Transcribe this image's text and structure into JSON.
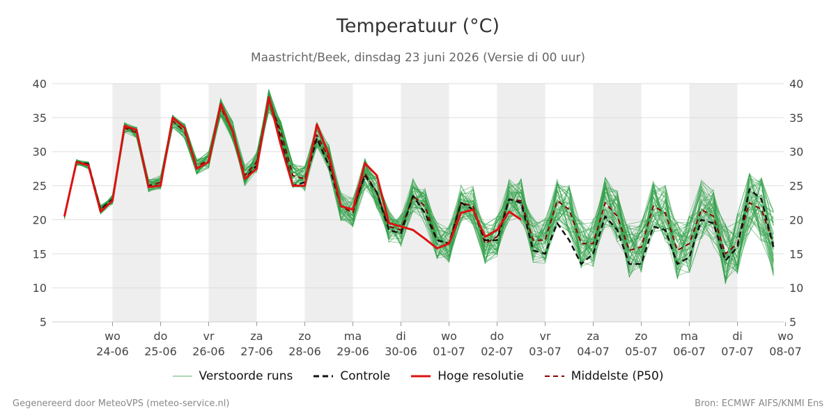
{
  "header": {
    "title": "Temperatuur (°C)",
    "subtitle": "Maastricht/Beek, dinsdag 23 juni 2026 (Versie di 00 uur)"
  },
  "footer": {
    "left": "Gegenereerd door MeteoVPS (meteo-service.nl)",
    "right": "Bron: ECMWF AIFS/KNMI Ens"
  },
  "legend": [
    {
      "label": "Verstoorde runs",
      "key": "ensemble"
    },
    {
      "label": "Controle",
      "key": "control"
    },
    {
      "label": "Hoge resolutie",
      "key": "hres"
    },
    {
      "label": "Middelste (P50)",
      "key": "p50"
    }
  ],
  "colors": {
    "ensemble": "#2e9e46",
    "control": "#111111",
    "hres": "#dd1111",
    "p50": "#8b0000",
    "weekend_band": "#eeeeee",
    "grid": "#dddddd"
  },
  "chart_data": {
    "type": "line",
    "x_unit": "6-hour steps from 23-06 00:00",
    "x_range": [
      0,
      62
    ],
    "ylim": [
      5,
      40
    ],
    "y_ticks": [
      5,
      10,
      15,
      20,
      25,
      30,
      35,
      40
    ],
    "x_ticks": [
      {
        "day": "wo",
        "date": "24-06",
        "x": 4
      },
      {
        "day": "do",
        "date": "25-06",
        "x": 8
      },
      {
        "day": "vr",
        "date": "26-06",
        "x": 12
      },
      {
        "day": "za",
        "date": "27-06",
        "x": 16
      },
      {
        "day": "zo",
        "date": "28-06",
        "x": 20
      },
      {
        "day": "ma",
        "date": "29-06",
        "x": 24
      },
      {
        "day": "di",
        "date": "30-06",
        "x": 28
      },
      {
        "day": "wo",
        "date": "01-07",
        "x": 32
      },
      {
        "day": "do",
        "date": "02-07",
        "x": 36
      },
      {
        "day": "vr",
        "date": "03-07",
        "x": 40
      },
      {
        "day": "za",
        "date": "04-07",
        "x": 44
      },
      {
        "day": "zo",
        "date": "05-07",
        "x": 48
      },
      {
        "day": "ma",
        "date": "06-07",
        "x": 52
      },
      {
        "day": "di",
        "date": "07-07",
        "x": 56
      },
      {
        "day": "wo",
        "date": "08-07",
        "x": 60
      }
    ],
    "shaded_bands": [
      [
        4,
        8
      ],
      [
        12,
        16
      ],
      [
        20,
        24
      ],
      [
        28,
        32
      ],
      [
        36,
        40
      ],
      [
        44,
        48
      ],
      [
        52,
        56
      ]
    ],
    "ensemble_members": 50,
    "series": [
      {
        "name": "Controle",
        "key": "control",
        "values": [
          20.5,
          28.5,
          28.2,
          21.5,
          23,
          33.8,
          33,
          25,
          25,
          35,
          33.5,
          27.5,
          28.5,
          37,
          33,
          26,
          28,
          38,
          32,
          25,
          25.5,
          32,
          28,
          22,
          21.5,
          26.5,
          24,
          18.5,
          18,
          23.5,
          21,
          17,
          16.5,
          22.5,
          21.5,
          17,
          17,
          23,
          22.5,
          15.5,
          15,
          19.5,
          17,
          13.5,
          15,
          20.5,
          18.5,
          13.5,
          13.5,
          19,
          18.5,
          13.5,
          14.5,
          20,
          19.5,
          14,
          16,
          24.5,
          23,
          16
        ]
      },
      {
        "name": "Hoge resolutie",
        "key": "hres",
        "values": [
          20.5,
          28.5,
          28,
          21.2,
          22.8,
          33.8,
          33.2,
          24.8,
          25,
          35,
          33.5,
          27.5,
          28.5,
          37,
          33,
          26,
          27.5,
          38,
          31,
          25,
          25,
          34,
          29.5,
          22,
          21.5,
          28.3,
          26.5,
          19.5,
          19,
          18.5,
          17.2,
          15.8,
          16.5,
          21,
          21.5,
          17.5,
          18.5,
          21.2,
          20
        ]
      },
      {
        "name": "Middelste (P50)",
        "key": "p50",
        "values": [
          20.5,
          28.4,
          28,
          21.5,
          23,
          33.5,
          32.8,
          25,
          25.5,
          34.5,
          33,
          27.8,
          28.8,
          36.5,
          33,
          26.5,
          28.5,
          37.5,
          33,
          26.5,
          26,
          32.5,
          29,
          22,
          21,
          26.8,
          24,
          19,
          18.5,
          23.5,
          22,
          17,
          16.5,
          22.5,
          22,
          16.5,
          17.5,
          23,
          22.8,
          17,
          17,
          22.8,
          21.5,
          16.5,
          16.5,
          22.5,
          20.5,
          15.5,
          16,
          22,
          21,
          15.5,
          16.5,
          21.5,
          20.5,
          15,
          16.5,
          22.5,
          21.5,
          16.5
        ]
      }
    ]
  }
}
